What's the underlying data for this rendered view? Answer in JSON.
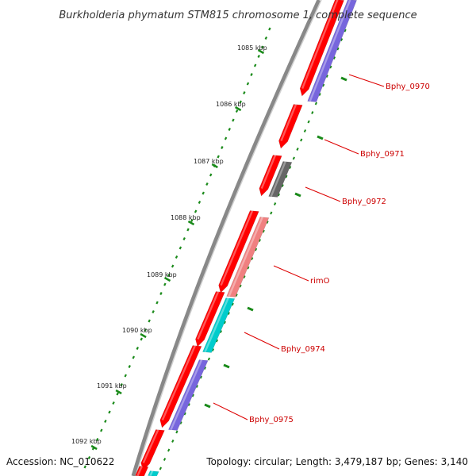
{
  "title": "Burkholderia phymatum STM815 chromosome 1, complete sequence",
  "footer": {
    "accession": "Accession: NC_010622",
    "stats": "Topology: circular; Length: 3,479,187 bp; Genes: 3,140"
  },
  "ruler": {
    "labels": [
      "1085 kbp",
      "1086 kbp",
      "1087 kbp",
      "1088 kbp",
      "1089 kbp",
      "1090 kbp",
      "1091 kbp",
      "1092 kbp"
    ],
    "tick_color": "#1a8a1a"
  },
  "gene_labels": [
    "Bphy_0970",
    "Bphy_0971",
    "Bphy_0972",
    "rimO",
    "Bphy_0974",
    "Bphy_0975"
  ],
  "colors": {
    "backbone": "#888888",
    "forward_cds": "#ff0000",
    "callout_line": "#dd0000",
    "label_text": "#cc0000",
    "cog_blue": "#7766dd",
    "cog_gray": "#666666",
    "cog_pink": "#f08080",
    "cog_cyan": "#00cccc"
  }
}
